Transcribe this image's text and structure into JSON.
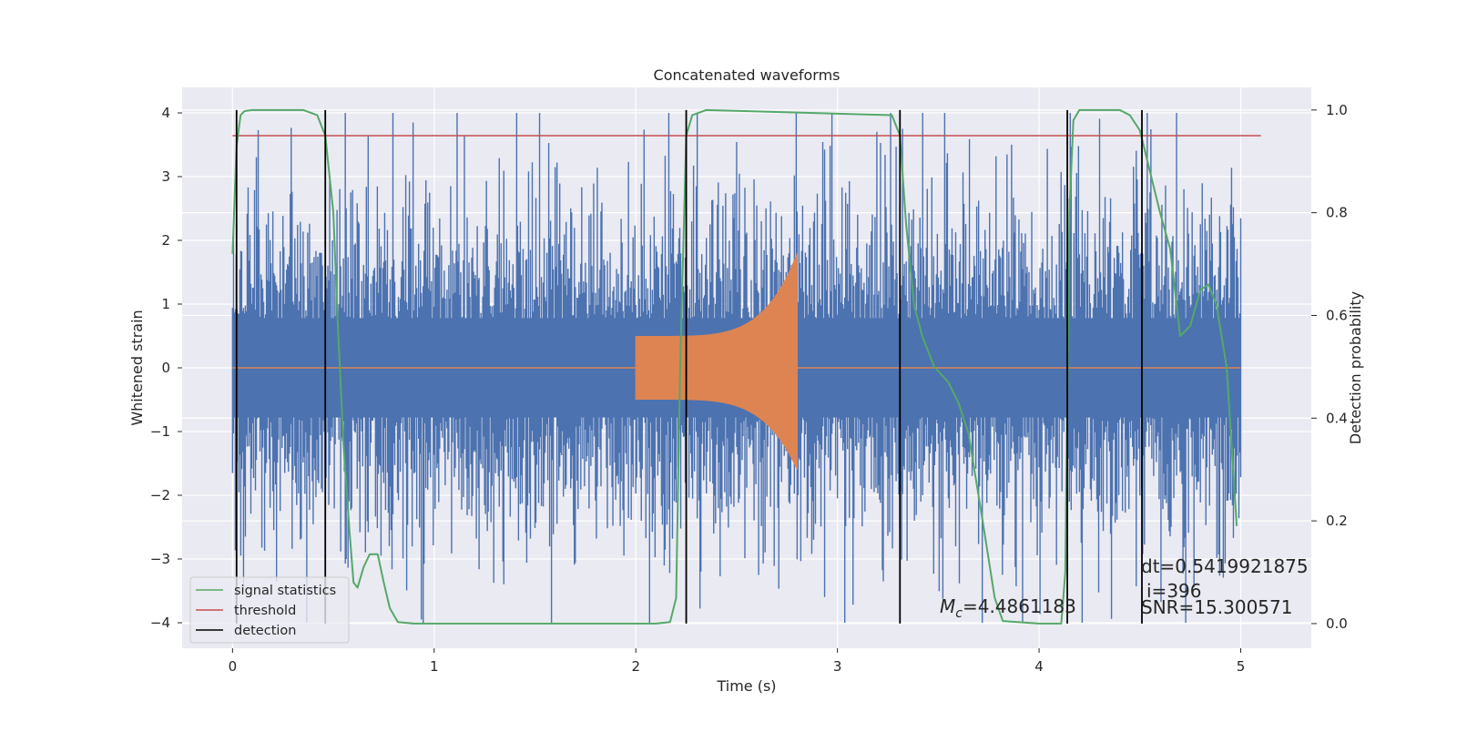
{
  "chart_data": {
    "type": "line",
    "title": "Concatenated waveforms",
    "xlabel": "Time (s)",
    "ylabel_left": "Whitened strain",
    "ylabel_right": "Detection probability",
    "xlim": [
      -0.25,
      5.35
    ],
    "ylim_left": [
      -4.4,
      4.4
    ],
    "ylim_right": [
      -0.048,
      1.044
    ],
    "x_ticks": [
      "0",
      "1",
      "2",
      "3",
      "4",
      "5"
    ],
    "y_ticks_left": [
      "4",
      "3",
      "2",
      "1",
      "0",
      "−1",
      "−2",
      "−3",
      "−4"
    ],
    "y_ticks_right": [
      "1.0",
      "0.8",
      "0.6",
      "0.4",
      "0.2",
      "0.0"
    ],
    "grid": true,
    "legend_position": "lower-left",
    "legend": [
      {
        "label": "signal statistics",
        "color": "#55a868"
      },
      {
        "label": "threshold",
        "color": "#c44e52"
      },
      {
        "label": "detection",
        "color": "#000000"
      }
    ],
    "noise_series": {
      "color": "#4c72b0",
      "x_range": [
        0,
        5
      ],
      "sampling_rate_hz": 2048,
      "typical_envelope": 2.6,
      "max_abs": 4.0
    },
    "injected_signal": {
      "color": "#dd8452",
      "start": 2.0,
      "merger": 2.8,
      "start_amplitude": 0.5,
      "peak_amplitude": 1.8
    },
    "signal_statistics": {
      "color": "#55a868",
      "x": [
        0,
        0.02,
        0.04,
        0.06,
        0.1,
        0.35,
        0.42,
        0.46,
        0.5,
        0.52,
        0.55,
        0.58,
        0.6,
        0.62,
        0.65,
        0.68,
        0.72,
        0.75,
        0.78,
        0.82,
        0.9,
        2.1,
        2.17,
        2.2,
        2.22,
        2.25,
        2.28,
        2.35,
        3.27,
        3.31,
        3.34,
        3.38,
        3.42,
        3.48,
        3.55,
        3.6,
        3.65,
        3.72,
        3.78,
        3.82,
        4.0,
        4.11,
        4.13,
        4.15,
        4.17,
        4.2,
        4.4,
        4.45,
        4.5,
        4.55,
        4.6,
        4.65,
        4.7,
        4.75,
        4.8,
        4.84,
        4.88,
        4.93,
        4.98
      ],
      "values": [
        0.72,
        0.93,
        0.99,
        0.998,
        1.0,
        1.0,
        0.99,
        0.95,
        0.8,
        0.6,
        0.35,
        0.18,
        0.08,
        0.07,
        0.11,
        0.135,
        0.135,
        0.08,
        0.03,
        0.003,
        0.0,
        0.0,
        0.003,
        0.05,
        0.5,
        0.95,
        0.99,
        1.0,
        0.99,
        0.95,
        0.78,
        0.62,
        0.56,
        0.5,
        0.47,
        0.43,
        0.37,
        0.2,
        0.05,
        0.005,
        0.0,
        0.0,
        0.1,
        0.8,
        0.98,
        1.0,
        1.0,
        0.99,
        0.96,
        0.88,
        0.8,
        0.73,
        0.56,
        0.58,
        0.65,
        0.66,
        0.62,
        0.5,
        0.19
      ]
    },
    "threshold": {
      "color": "#c44e52",
      "value": 0.95,
      "x_range": [
        0,
        5.1
      ]
    },
    "detections": {
      "color": "#000000",
      "times": [
        0.02,
        0.46,
        2.25,
        3.31,
        4.14,
        4.51
      ]
    },
    "annotations": {
      "mc": "=4.4861183",
      "dt": "dt=0.5419921875",
      "i": "i=396",
      "snr": "SNR=15.300571"
    }
  }
}
